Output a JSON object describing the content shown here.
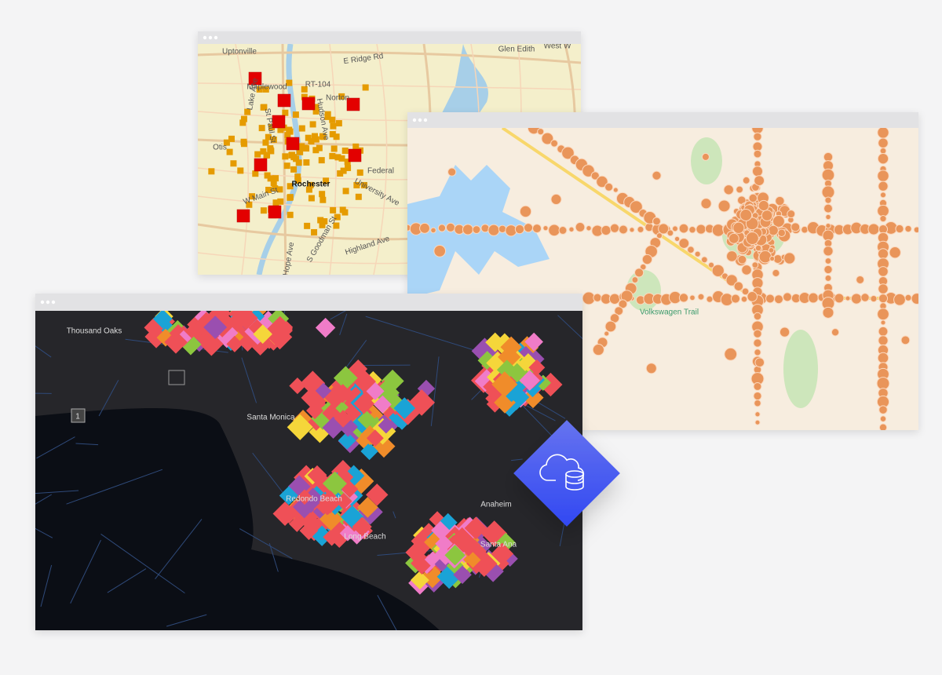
{
  "rochester_map": {
    "labels": [
      "Uptonville",
      "E Ridge Rd",
      "Glen Edith",
      "West W",
      "Maplewood",
      "RT-104",
      "Norton",
      "Otis",
      "Rochester",
      "University Ave",
      "Federal",
      "W Main St",
      "Highland Ave",
      "S Goodman St",
      "Hope Ave",
      "St Paul St",
      "Lake Ave",
      "Hudson Ave"
    ]
  },
  "texas_map": {
    "labels": [
      "Volkswagen Trail"
    ]
  },
  "la_map": {
    "labels": [
      "Thousand Oaks",
      "Santa Monica",
      "Long Beach",
      "Santa Ana",
      "Anaheim",
      "Redondo Beach",
      "1"
    ]
  }
}
